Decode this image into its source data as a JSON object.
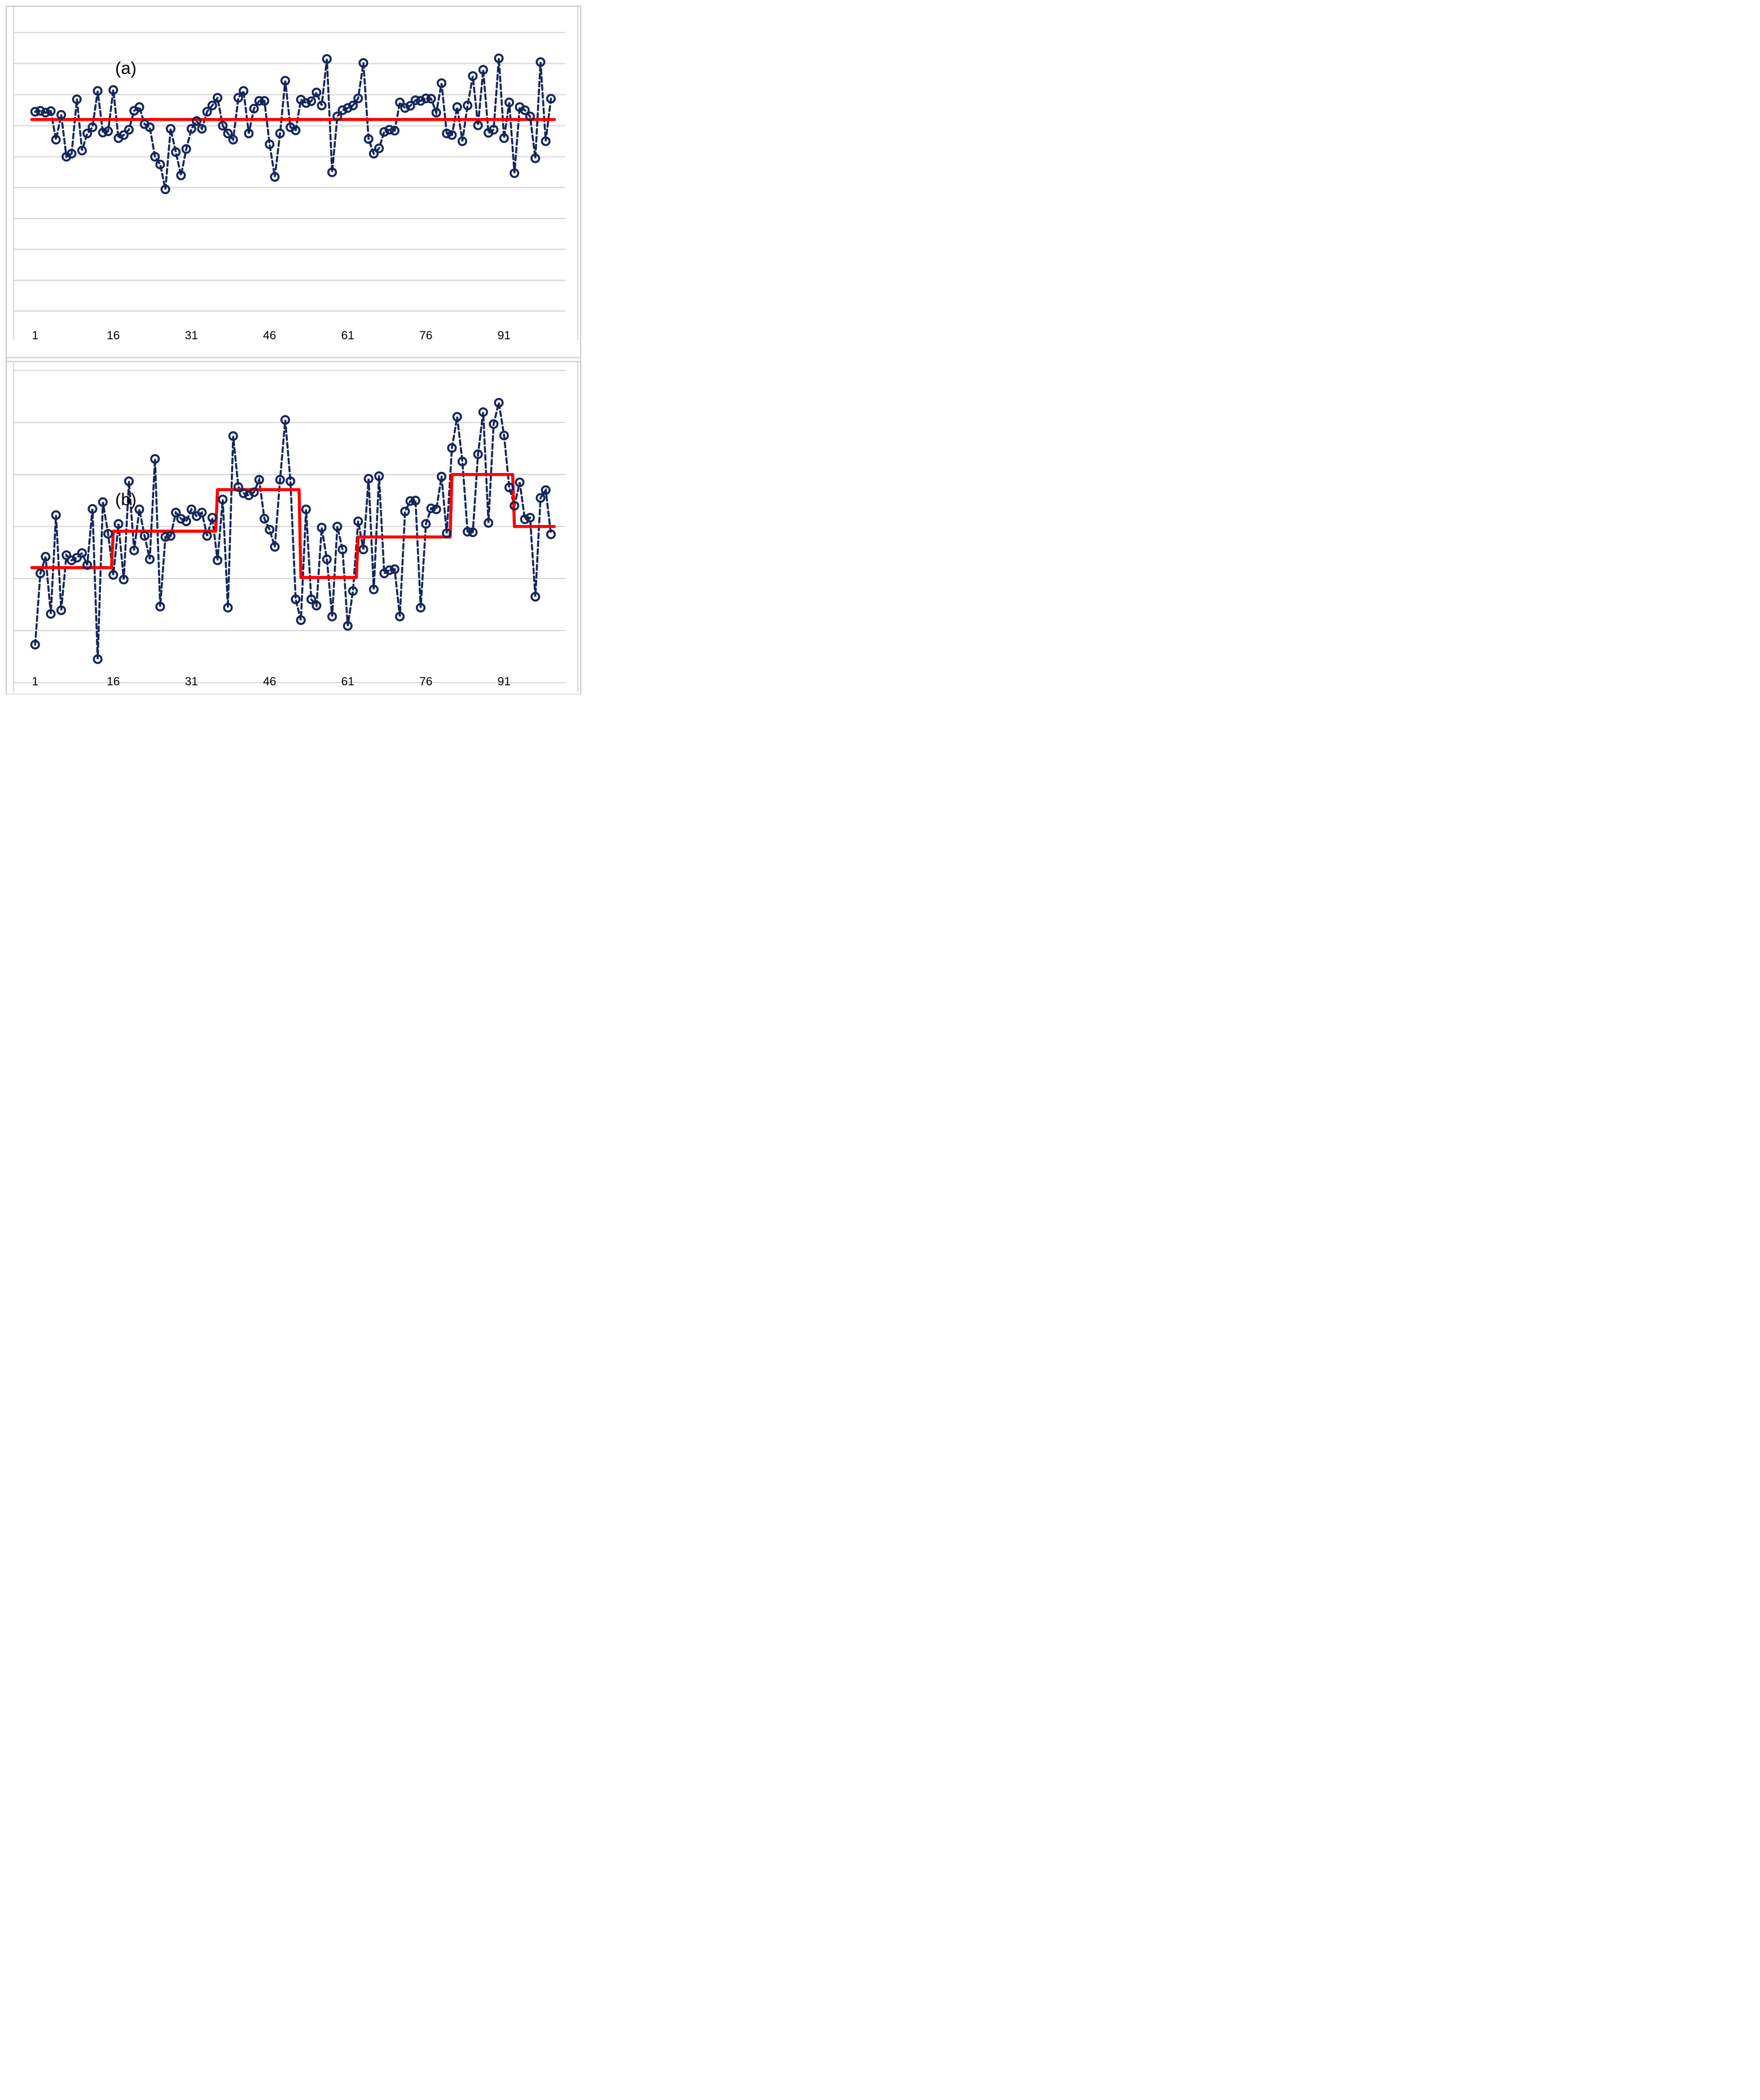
{
  "page": {
    "kind": "two stacked time-series panels, dashed observed series with open circle markers and red piecewise-constant mean line",
    "background_color": "#ffffff",
    "frame_color": "#c9c9c9",
    "gridline_color": "#d9d9d9",
    "series_color": "#13265C",
    "mean_line_color": "#FF0000",
    "text_color": "#000000"
  },
  "chart_data": [
    {
      "type": "line",
      "panel_label": "(a)",
      "title": "",
      "xlabel": "",
      "ylabel": "",
      "n_points": 100,
      "x_ticks": [
        1,
        16,
        31,
        46,
        61,
        76,
        91
      ],
      "ylim": [
        -6.7,
        3.3
      ],
      "gridlines": [
        2.8,
        1.8,
        0.8,
        -0.2,
        -1.2,
        -2.19,
        -3.19,
        -4.18,
        -5.18,
        -6.17
      ],
      "grid_on": true,
      "legend_position": "none",
      "series": [
        {
          "name": "observed",
          "style": "dashed-with-open-circle-markers",
          "color": "#13265C",
          "values": [
            0.25,
            0.28,
            0.22,
            0.27,
            -0.65,
            0.15,
            -1.2,
            -1.1,
            0.65,
            -1.0,
            -0.45,
            -0.25,
            0.92,
            -0.42,
            -0.38,
            0.95,
            -0.6,
            -0.5,
            -0.33,
            0.28,
            0.4,
            -0.15,
            -0.25,
            -1.2,
            -1.45,
            -2.25,
            -0.3,
            -1.05,
            -1.8,
            -0.95,
            -0.3,
            -0.05,
            -0.3,
            0.25,
            0.45,
            0.7,
            -0.2,
            -0.45,
            -0.65,
            0.7,
            0.92,
            -0.45,
            0.35,
            0.6,
            0.6,
            -0.8,
            -1.85,
            -0.45,
            1.25,
            -0.25,
            -0.35,
            0.64,
            0.53,
            0.59,
            0.87,
            0.45,
            1.95,
            -1.7,
            0.1,
            0.3,
            0.37,
            0.45,
            0.68,
            1.82,
            -0.63,
            -1.1,
            -0.93,
            -0.4,
            -0.33,
            -0.36,
            0.55,
            0.37,
            0.44,
            0.62,
            0.6,
            0.68,
            0.67,
            0.22,
            1.17,
            -0.45,
            -0.5,
            0.4,
            -0.7,
            0.45,
            1.4,
            -0.19,
            1.6,
            -0.43,
            -0.33,
            1.97,
            -0.6,
            0.55,
            -1.73,
            0.4,
            0.3,
            0.1,
            -1.25,
            1.85,
            -0.7,
            0.67
          ]
        },
        {
          "name": "fitted-mean",
          "style": "solid-step",
          "color": "#FF0000",
          "segments": [
            {
              "from": 1,
              "to": 100,
              "level": 0.0
            }
          ]
        }
      ]
    },
    {
      "type": "line",
      "panel_label": "(b)",
      "title": "",
      "xlabel": "",
      "ylabel": "",
      "n_points": 100,
      "x_ticks": [
        1,
        16,
        31,
        46,
        61,
        76,
        91
      ],
      "ylim": [
        -2.15,
        4.0
      ],
      "gridlines": [
        4,
        3,
        2,
        1,
        0,
        -1,
        -2
      ],
      "grid_on": true,
      "legend_position": "none",
      "series": [
        {
          "name": "observed",
          "style": "dashed-with-open-circle-markers",
          "color": "#13265C",
          "values": [
            -1.27,
            0.1,
            0.42,
            -0.68,
            1.22,
            -0.61,
            0.45,
            0.35,
            0.4,
            0.49,
            0.26,
            1.34,
            -1.55,
            1.47,
            0.86,
            0.07,
            1.05,
            -0.02,
            1.87,
            0.54,
            1.33,
            0.82,
            0.37,
            2.3,
            -0.54,
            0.8,
            0.82,
            1.27,
            1.15,
            1.1,
            1.33,
            1.2,
            1.27,
            0.82,
            1.17,
            0.35,
            1.52,
            -0.56,
            2.74,
            1.76,
            1.64,
            1.6,
            1.66,
            1.9,
            1.15,
            0.94,
            0.61,
            1.9,
            3.05,
            1.87,
            -0.4,
            -0.8,
            1.33,
            -0.4,
            -0.52,
            0.98,
            0.37,
            -0.73,
            1.0,
            0.56,
            -0.91,
            -0.24,
            1.1,
            0.56,
            1.92,
            -0.21,
            1.97,
            0.1,
            0.16,
            0.18,
            -0.73,
            1.29,
            1.49,
            1.5,
            -0.56,
            1.05,
            1.35,
            1.33,
            1.96,
            0.87,
            2.51,
            3.11,
            2.25,
            0.9,
            0.89,
            2.39,
            3.2,
            1.07,
            2.97,
            3.38,
            2.75,
            1.75,
            1.4,
            1.85,
            1.14,
            1.17,
            -0.35,
            1.55,
            1.7,
            0.85
          ]
        },
        {
          "name": "fitted-step-mean",
          "style": "solid-step",
          "color": "#FF0000",
          "segments": [
            {
              "from": 1,
              "to": 15,
              "level": 0.21
            },
            {
              "from": 16,
              "to": 35,
              "level": 0.91
            },
            {
              "from": 36,
              "to": 51,
              "level": 1.71
            },
            {
              "from": 52,
              "to": 62,
              "level": 0.02
            },
            {
              "from": 63,
              "to": 80,
              "level": 0.8
            },
            {
              "from": 81,
              "to": 92,
              "level": 2.0
            },
            {
              "from": 93,
              "to": 100,
              "level": 1.0
            }
          ]
        }
      ]
    }
  ]
}
